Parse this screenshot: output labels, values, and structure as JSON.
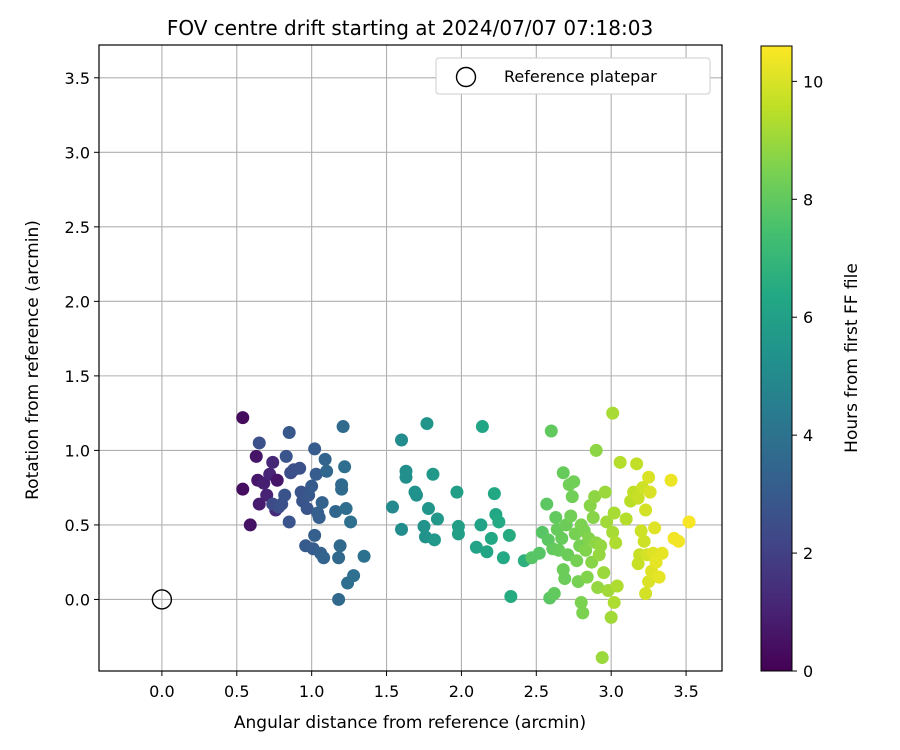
{
  "chart_data": {
    "type": "scatter",
    "title": "FOV centre drift starting at 2024/07/07 07:18:03",
    "xlabel": "Angular distance from reference (arcmin)",
    "ylabel": "Rotation from reference (arcmin)",
    "xlim": [
      -0.42,
      3.74
    ],
    "ylim": [
      -0.48,
      3.72
    ],
    "xticks": [
      "0.0",
      "0.5",
      "1.0",
      "1.5",
      "2.0",
      "2.5",
      "3.0",
      "3.5"
    ],
    "yticks": [
      "0.0",
      "0.5",
      "1.0",
      "1.5",
      "2.0",
      "2.5",
      "3.0",
      "3.5"
    ],
    "grid": true,
    "legend": {
      "position": "top-right",
      "entries": [
        "Reference platepar"
      ]
    },
    "reference_point": {
      "x": 0.0,
      "y": 0.0,
      "label": "Reference platepar"
    },
    "colorbar": {
      "label": "Hours from first FF file",
      "range": [
        0,
        10.6
      ],
      "ticks": [
        "0",
        "2",
        "4",
        "6",
        "8",
        "10"
      ],
      "colormap": "viridis"
    },
    "points": [
      {
        "x": 0.54,
        "y": 1.22,
        "h": 0.3
      },
      {
        "x": 0.54,
        "y": 0.74,
        "h": 0.4
      },
      {
        "x": 0.59,
        "y": 0.5,
        "h": 0.5
      },
      {
        "x": 0.63,
        "y": 0.96,
        "h": 0.6
      },
      {
        "x": 0.64,
        "y": 0.8,
        "h": 0.7
      },
      {
        "x": 0.65,
        "y": 0.64,
        "h": 0.8
      },
      {
        "x": 0.68,
        "y": 0.78,
        "h": 0.9
      },
      {
        "x": 0.7,
        "y": 0.7,
        "h": 1.0
      },
      {
        "x": 0.72,
        "y": 0.84,
        "h": 1.1
      },
      {
        "x": 0.74,
        "y": 0.92,
        "h": 1.2
      },
      {
        "x": 0.76,
        "y": 0.6,
        "h": 1.3
      },
      {
        "x": 0.77,
        "y": 0.8,
        "h": 0.6
      },
      {
        "x": 0.65,
        "y": 1.05,
        "h": 2.6
      },
      {
        "x": 0.74,
        "y": 0.64,
        "h": 2.4
      },
      {
        "x": 0.78,
        "y": 0.62,
        "h": 2.5
      },
      {
        "x": 0.8,
        "y": 0.64,
        "h": 2.6
      },
      {
        "x": 0.82,
        "y": 0.7,
        "h": 2.7
      },
      {
        "x": 0.83,
        "y": 0.96,
        "h": 2.8
      },
      {
        "x": 0.85,
        "y": 1.12,
        "h": 2.9
      },
      {
        "x": 0.86,
        "y": 0.85,
        "h": 2.5
      },
      {
        "x": 0.85,
        "y": 0.52,
        "h": 2.8
      },
      {
        "x": 0.88,
        "y": 0.87,
        "h": 2.6
      },
      {
        "x": 0.92,
        "y": 0.88,
        "h": 2.6
      },
      {
        "x": 0.93,
        "y": 0.72,
        "h": 2.7
      },
      {
        "x": 0.94,
        "y": 0.66,
        "h": 2.7
      },
      {
        "x": 0.96,
        "y": 0.36,
        "h": 3.0
      },
      {
        "x": 0.97,
        "y": 0.61,
        "h": 2.8
      },
      {
        "x": 0.98,
        "y": 0.7,
        "h": 2.9
      },
      {
        "x": 1.0,
        "y": 0.76,
        "h": 3.0
      },
      {
        "x": 1.01,
        "y": 0.34,
        "h": 3.1
      },
      {
        "x": 1.02,
        "y": 0.43,
        "h": 3.2
      },
      {
        "x": 1.02,
        "y": 1.01,
        "h": 3.1
      },
      {
        "x": 1.03,
        "y": 0.84,
        "h": 3.1
      },
      {
        "x": 1.04,
        "y": 0.58,
        "h": 3.2
      },
      {
        "x": 1.05,
        "y": 0.55,
        "h": 3.2
      },
      {
        "x": 1.06,
        "y": 0.31,
        "h": 3.3
      },
      {
        "x": 1.07,
        "y": 0.65,
        "h": 3.3
      },
      {
        "x": 1.08,
        "y": 0.28,
        "h": 3.4
      },
      {
        "x": 1.09,
        "y": 0.94,
        "h": 3.4
      },
      {
        "x": 1.1,
        "y": 0.86,
        "h": 3.5
      },
      {
        "x": 1.16,
        "y": 0.59,
        "h": 3.5
      },
      {
        "x": 1.18,
        "y": 0.0,
        "h": 3.6
      },
      {
        "x": 1.18,
        "y": 0.28,
        "h": 3.6
      },
      {
        "x": 1.19,
        "y": 0.36,
        "h": 3.6
      },
      {
        "x": 1.2,
        "y": 0.74,
        "h": 3.7
      },
      {
        "x": 1.2,
        "y": 0.77,
        "h": 3.7
      },
      {
        "x": 1.21,
        "y": 1.16,
        "h": 3.7
      },
      {
        "x": 1.22,
        "y": 0.89,
        "h": 3.8
      },
      {
        "x": 1.23,
        "y": 0.61,
        "h": 3.8
      },
      {
        "x": 1.24,
        "y": 0.11,
        "h": 3.8
      },
      {
        "x": 1.26,
        "y": 0.52,
        "h": 3.9
      },
      {
        "x": 1.28,
        "y": 0.16,
        "h": 3.9
      },
      {
        "x": 1.35,
        "y": 0.29,
        "h": 4.0
      },
      {
        "x": 1.54,
        "y": 0.62,
        "h": 5.0
      },
      {
        "x": 1.6,
        "y": 1.07,
        "h": 5.1
      },
      {
        "x": 1.6,
        "y": 0.47,
        "h": 5.1
      },
      {
        "x": 1.63,
        "y": 0.86,
        "h": 5.2
      },
      {
        "x": 1.63,
        "y": 0.82,
        "h": 5.2
      },
      {
        "x": 1.69,
        "y": 0.72,
        "h": 5.3
      },
      {
        "x": 1.7,
        "y": 0.7,
        "h": 5.3
      },
      {
        "x": 1.75,
        "y": 0.49,
        "h": 5.4
      },
      {
        "x": 1.76,
        "y": 0.42,
        "h": 5.4
      },
      {
        "x": 1.77,
        "y": 1.18,
        "h": 5.5
      },
      {
        "x": 1.78,
        "y": 0.61,
        "h": 5.5
      },
      {
        "x": 1.81,
        "y": 0.84,
        "h": 5.6
      },
      {
        "x": 1.82,
        "y": 0.4,
        "h": 5.6
      },
      {
        "x": 1.84,
        "y": 0.54,
        "h": 5.6
      },
      {
        "x": 1.97,
        "y": 0.72,
        "h": 5.9
      },
      {
        "x": 1.98,
        "y": 0.49,
        "h": 5.9
      },
      {
        "x": 1.98,
        "y": 0.44,
        "h": 5.9
      },
      {
        "x": 2.1,
        "y": 0.35,
        "h": 6.1
      },
      {
        "x": 2.13,
        "y": 0.5,
        "h": 6.1
      },
      {
        "x": 2.14,
        "y": 1.16,
        "h": 6.2
      },
      {
        "x": 2.17,
        "y": 0.32,
        "h": 6.2
      },
      {
        "x": 2.2,
        "y": 0.41,
        "h": 6.3
      },
      {
        "x": 2.22,
        "y": 0.71,
        "h": 6.3
      },
      {
        "x": 2.23,
        "y": 0.57,
        "h": 6.3
      },
      {
        "x": 2.25,
        "y": 0.52,
        "h": 6.4
      },
      {
        "x": 2.28,
        "y": 0.28,
        "h": 6.4
      },
      {
        "x": 2.32,
        "y": 0.43,
        "h": 6.5
      },
      {
        "x": 2.33,
        "y": 0.02,
        "h": 6.5
      },
      {
        "x": 2.42,
        "y": 0.26,
        "h": 6.7
      },
      {
        "x": 2.47,
        "y": 0.28,
        "h": 7.8
      },
      {
        "x": 2.52,
        "y": 0.31,
        "h": 7.8
      },
      {
        "x": 2.54,
        "y": 0.45,
        "h": 7.8
      },
      {
        "x": 2.57,
        "y": 0.64,
        "h": 7.9
      },
      {
        "x": 2.58,
        "y": 0.4,
        "h": 7.9
      },
      {
        "x": 2.59,
        "y": 0.01,
        "h": 7.9
      },
      {
        "x": 2.6,
        "y": 1.13,
        "h": 8.0
      },
      {
        "x": 2.61,
        "y": 0.34,
        "h": 8.0
      },
      {
        "x": 2.62,
        "y": 0.04,
        "h": 8.0
      },
      {
        "x": 2.63,
        "y": 0.55,
        "h": 8.0
      },
      {
        "x": 2.64,
        "y": 0.47,
        "h": 8.1
      },
      {
        "x": 2.65,
        "y": 0.33,
        "h": 8.1
      },
      {
        "x": 2.67,
        "y": 0.41,
        "h": 8.1
      },
      {
        "x": 2.68,
        "y": 0.85,
        "h": 8.1
      },
      {
        "x": 2.68,
        "y": 0.2,
        "h": 8.2
      },
      {
        "x": 2.69,
        "y": 0.14,
        "h": 8.2
      },
      {
        "x": 2.7,
        "y": 0.5,
        "h": 8.2
      },
      {
        "x": 2.71,
        "y": 0.3,
        "h": 8.2
      },
      {
        "x": 2.72,
        "y": 0.77,
        "h": 8.3
      },
      {
        "x": 2.73,
        "y": 0.56,
        "h": 8.3
      },
      {
        "x": 2.74,
        "y": 0.69,
        "h": 8.3
      },
      {
        "x": 2.75,
        "y": 0.79,
        "h": 8.3
      },
      {
        "x": 2.76,
        "y": 0.44,
        "h": 8.4
      },
      {
        "x": 2.77,
        "y": 0.26,
        "h": 8.4
      },
      {
        "x": 2.78,
        "y": 0.12,
        "h": 8.4
      },
      {
        "x": 2.79,
        "y": 0.36,
        "h": 8.4
      },
      {
        "x": 2.8,
        "y": 0.5,
        "h": 8.5
      },
      {
        "x": 2.8,
        "y": -0.02,
        "h": 8.5
      },
      {
        "x": 2.81,
        "y": -0.09,
        "h": 8.5
      },
      {
        "x": 2.82,
        "y": 0.46,
        "h": 8.5
      },
      {
        "x": 2.83,
        "y": 0.33,
        "h": 8.6
      },
      {
        "x": 2.84,
        "y": 0.15,
        "h": 8.6
      },
      {
        "x": 2.85,
        "y": 0.41,
        "h": 8.6
      },
      {
        "x": 2.86,
        "y": 0.63,
        "h": 8.7
      },
      {
        "x": 2.87,
        "y": 0.25,
        "h": 8.7
      },
      {
        "x": 2.88,
        "y": 0.55,
        "h": 8.7
      },
      {
        "x": 2.89,
        "y": 0.69,
        "h": 8.8
      },
      {
        "x": 2.9,
        "y": 0.38,
        "h": 8.8
      },
      {
        "x": 2.9,
        "y": 1.0,
        "h": 8.8
      },
      {
        "x": 2.91,
        "y": 0.08,
        "h": 8.9
      },
      {
        "x": 2.92,
        "y": 0.3,
        "h": 8.9
      },
      {
        "x": 2.93,
        "y": 0.36,
        "h": 8.9
      },
      {
        "x": 2.94,
        "y": -0.39,
        "h": 9.0
      },
      {
        "x": 2.95,
        "y": 0.18,
        "h": 9.0
      },
      {
        "x": 2.96,
        "y": 0.72,
        "h": 9.0
      },
      {
        "x": 2.97,
        "y": 0.52,
        "h": 9.1
      },
      {
        "x": 2.98,
        "y": 0.06,
        "h": 9.1
      },
      {
        "x": 3.0,
        "y": -0.12,
        "h": 9.1
      },
      {
        "x": 3.01,
        "y": 1.25,
        "h": 9.2
      },
      {
        "x": 3.01,
        "y": 0.45,
        "h": 9.2
      },
      {
        "x": 3.02,
        "y": 0.58,
        "h": 9.2
      },
      {
        "x": 3.02,
        "y": -0.02,
        "h": 9.3
      },
      {
        "x": 3.03,
        "y": 0.38,
        "h": 9.3
      },
      {
        "x": 3.04,
        "y": 0.09,
        "h": 9.3
      },
      {
        "x": 3.06,
        "y": 0.92,
        "h": 9.4
      },
      {
        "x": 3.1,
        "y": 0.54,
        "h": 9.4
      },
      {
        "x": 3.13,
        "y": 0.66,
        "h": 9.5
      },
      {
        "x": 3.15,
        "y": 0.72,
        "h": 9.6
      },
      {
        "x": 3.17,
        "y": 0.91,
        "h": 9.6
      },
      {
        "x": 3.18,
        "y": 0.68,
        "h": 9.7
      },
      {
        "x": 3.18,
        "y": 0.24,
        "h": 9.7
      },
      {
        "x": 3.19,
        "y": 0.3,
        "h": 9.7
      },
      {
        "x": 3.2,
        "y": 0.46,
        "h": 9.8
      },
      {
        "x": 3.21,
        "y": 0.75,
        "h": 9.8
      },
      {
        "x": 3.22,
        "y": 0.39,
        "h": 9.8
      },
      {
        "x": 3.23,
        "y": 0.6,
        "h": 9.9
      },
      {
        "x": 3.23,
        "y": 0.04,
        "h": 9.9
      },
      {
        "x": 3.24,
        "y": 0.3,
        "h": 9.9
      },
      {
        "x": 3.25,
        "y": 0.82,
        "h": 10.0
      },
      {
        "x": 3.25,
        "y": 0.12,
        "h": 10.0
      },
      {
        "x": 3.26,
        "y": 0.72,
        "h": 10.0
      },
      {
        "x": 3.27,
        "y": 0.19,
        "h": 10.1
      },
      {
        "x": 3.28,
        "y": 0.31,
        "h": 10.1
      },
      {
        "x": 3.29,
        "y": 0.48,
        "h": 10.1
      },
      {
        "x": 3.3,
        "y": 0.25,
        "h": 10.2
      },
      {
        "x": 3.32,
        "y": 0.15,
        "h": 10.2
      },
      {
        "x": 3.34,
        "y": 0.31,
        "h": 10.2
      },
      {
        "x": 3.4,
        "y": 0.8,
        "h": 10.3
      },
      {
        "x": 3.42,
        "y": 0.41,
        "h": 10.4
      },
      {
        "x": 3.45,
        "y": 0.39,
        "h": 10.4
      },
      {
        "x": 3.52,
        "y": 0.52,
        "h": 10.5
      }
    ]
  }
}
